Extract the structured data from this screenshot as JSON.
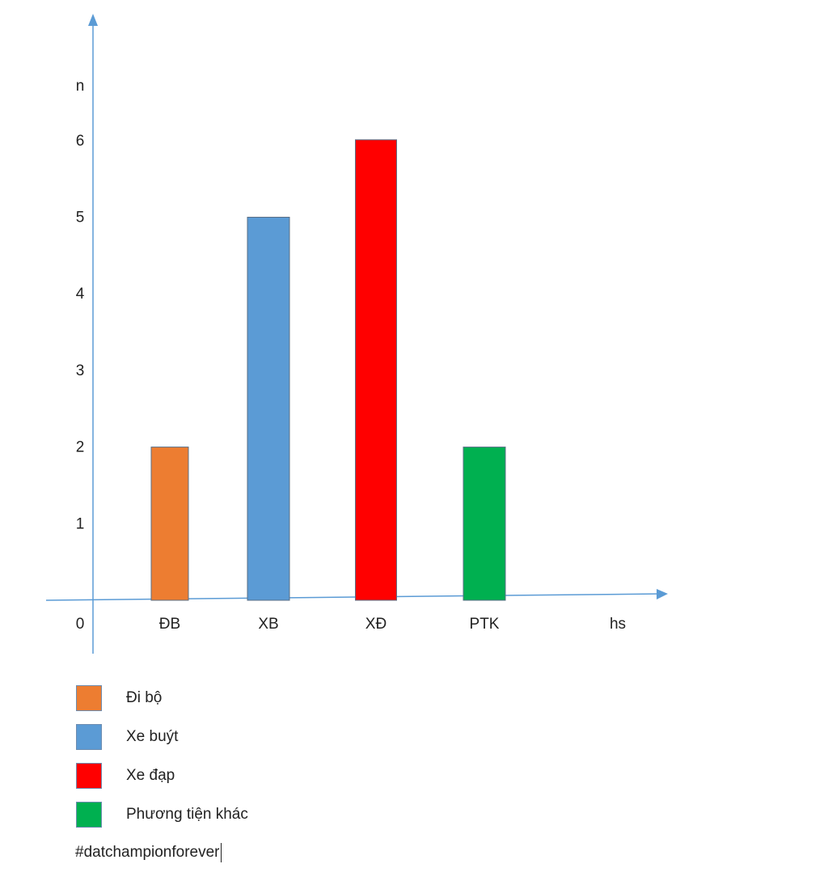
{
  "chart_data": {
    "type": "bar",
    "categories": [
      "ĐB",
      "XB",
      "XĐ",
      "PTK"
    ],
    "values": [
      2,
      5,
      6,
      2
    ],
    "colors": [
      "#ed7d31",
      "#5b9bd5",
      "#ff0000",
      "#00b050"
    ],
    "title": "",
    "xlabel": "hs",
    "ylabel": "n",
    "origin_label": "0",
    "yticks": [
      1,
      2,
      3,
      4,
      5,
      6
    ],
    "ylim": [
      0,
      7
    ],
    "grid": false,
    "legend_position": "bottom-left",
    "legend": [
      {
        "label": "Đi bộ",
        "color": "#ed7d31"
      },
      {
        "label": "Xe buýt",
        "color": "#5b9bd5"
      },
      {
        "label": "Xe đạp",
        "color": "#ff0000"
      },
      {
        "label": "Phương tiện khác",
        "color": "#00b050"
      }
    ],
    "axis_color": "#5b9bd5"
  },
  "footer": {
    "hashtag": "#datchampionforever"
  }
}
